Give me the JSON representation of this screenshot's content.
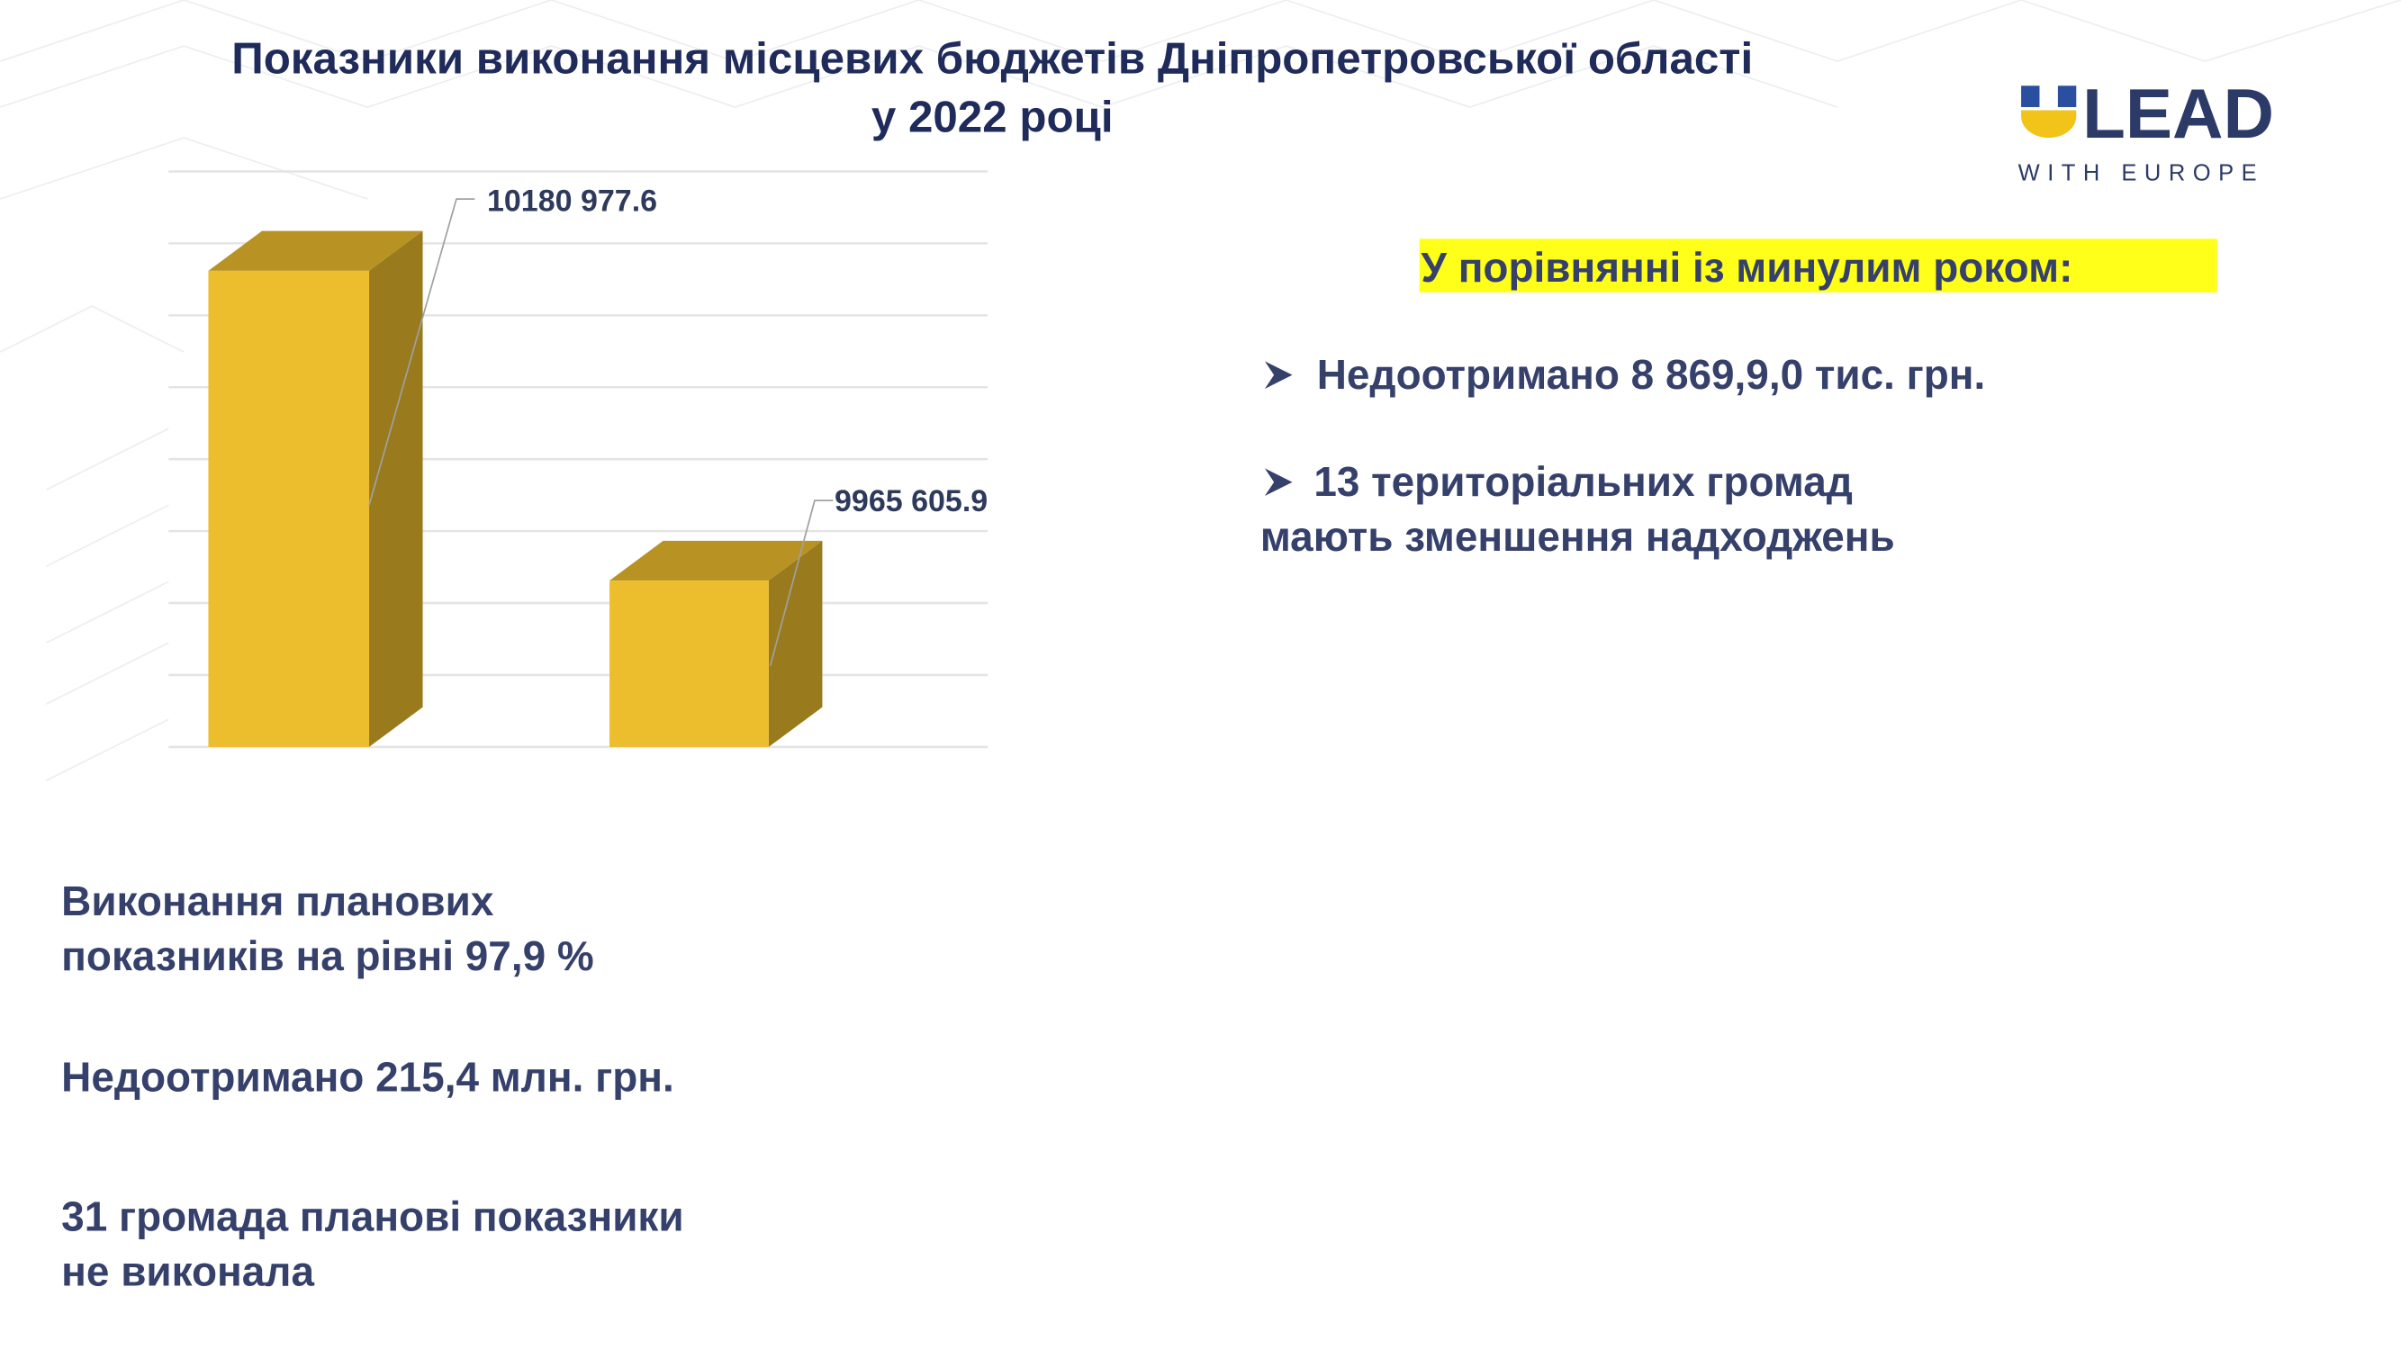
{
  "slide": {
    "title_lines": [
      "Показники виконання місцевих бюджетів Дніпропетровської області",
      "у 2022 році"
    ],
    "logo": {
      "word": "LEAD",
      "tagline": "WITH EUROPE"
    },
    "comparison": {
      "heading": "У порівнянні із минулим роком:",
      "items": [
        [
          "Недоотримано 8 869,9,0 тис. грн."
        ],
        [
          "13 територіальних громад",
          "мають зменшення надходжень"
        ]
      ]
    },
    "summary": [
      [
        "Виконання планових",
        "показників на рівні 97,9 %"
      ],
      [
        "Недоотримано 215,4 млн. грн."
      ],
      [
        "31 громада планові показники",
        "не виконала"
      ]
    ]
  },
  "chart_data": {
    "type": "bar",
    "values": [
      10180977.6,
      9965605.9
    ],
    "value_labels": [
      "10180 977.6",
      "9965 605.9"
    ],
    "color": "#ecbd2d",
    "ylim": [
      9850000,
      10250000
    ],
    "yticks": [
      9850000,
      9900000,
      9950000,
      10000000,
      10050000,
      10100000,
      10150000,
      10200000,
      10250000
    ],
    "grid": true
  }
}
